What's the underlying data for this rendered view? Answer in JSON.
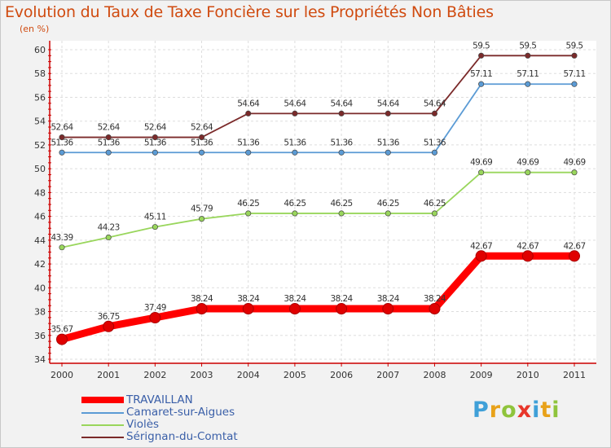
{
  "title": "Evolution du Taux de Taxe Foncière sur les Propriétés Non Bâties",
  "unit_label": "(en %)",
  "logo": {
    "text": "Proxiti",
    "colors": [
      "#3fa0d8",
      "#e8a21a",
      "#8fc43c",
      "#e8362a",
      "#3fa0d8",
      "#e8a21a",
      "#8fc43c"
    ]
  },
  "chart_data": {
    "type": "line",
    "title": "Evolution du Taux de Taxe Foncière sur les Propriétés Non Bâties",
    "ylabel": "(en %)",
    "xlabel": "",
    "ylim": [
      34,
      60
    ],
    "y_ticks": [
      34,
      36,
      38,
      40,
      42,
      44,
      46,
      48,
      50,
      52,
      54,
      56,
      58,
      60
    ],
    "grid": true,
    "x": [
      "2000",
      "2001",
      "2002",
      "2003",
      "2004",
      "2005",
      "2006",
      "2007",
      "2008",
      "2009",
      "2010",
      "2011"
    ],
    "series": [
      {
        "name": "TRAVAILLAN",
        "color": "#ff0000",
        "emphasis": true,
        "values": [
          35.67,
          36.75,
          37.49,
          38.24,
          38.24,
          38.24,
          38.24,
          38.24,
          38.24,
          42.67,
          42.67,
          42.67
        ],
        "labels": [
          "35.67",
          "36.75",
          "37.49",
          "38.24",
          "38.24",
          "38.24",
          "38.24",
          "38.24",
          "38.24",
          "42.67",
          "42.67",
          "42.67"
        ]
      },
      {
        "name": "Camaret-sur-Aigues",
        "color": "#5b9bd5",
        "emphasis": false,
        "values": [
          51.36,
          51.36,
          51.36,
          51.36,
          51.36,
          51.36,
          51.36,
          51.36,
          51.36,
          57.11,
          57.11,
          57.11
        ],
        "labels": [
          "51.36",
          "51.36",
          "51.36",
          "51.36",
          "51.36",
          "51.36",
          "51.36",
          "51.36",
          "51.36",
          "57.11",
          "57.11",
          "57.11"
        ]
      },
      {
        "name": "Violès",
        "color": "#99d65c",
        "emphasis": false,
        "values": [
          43.39,
          44.23,
          45.11,
          45.79,
          46.25,
          46.25,
          46.25,
          46.25,
          46.25,
          49.69,
          49.69,
          49.69
        ],
        "labels": [
          "43.39",
          "44.23",
          "45.11",
          "45.79",
          "46.25",
          "46.25",
          "46.25",
          "46.25",
          "46.25",
          "49.69",
          "49.69",
          "49.69"
        ]
      },
      {
        "name": "Sérignan-du-Comtat",
        "color": "#7b2a2a",
        "emphasis": false,
        "values": [
          52.64,
          52.64,
          52.64,
          52.64,
          54.64,
          54.64,
          54.64,
          54.64,
          54.64,
          59.5,
          59.5,
          59.5
        ],
        "labels": [
          "52.64",
          "52.64",
          "52.64",
          "52.64",
          "54.64",
          "54.64",
          "54.64",
          "54.64",
          "54.64",
          "59.5",
          "59.5",
          "59.5"
        ]
      }
    ]
  }
}
